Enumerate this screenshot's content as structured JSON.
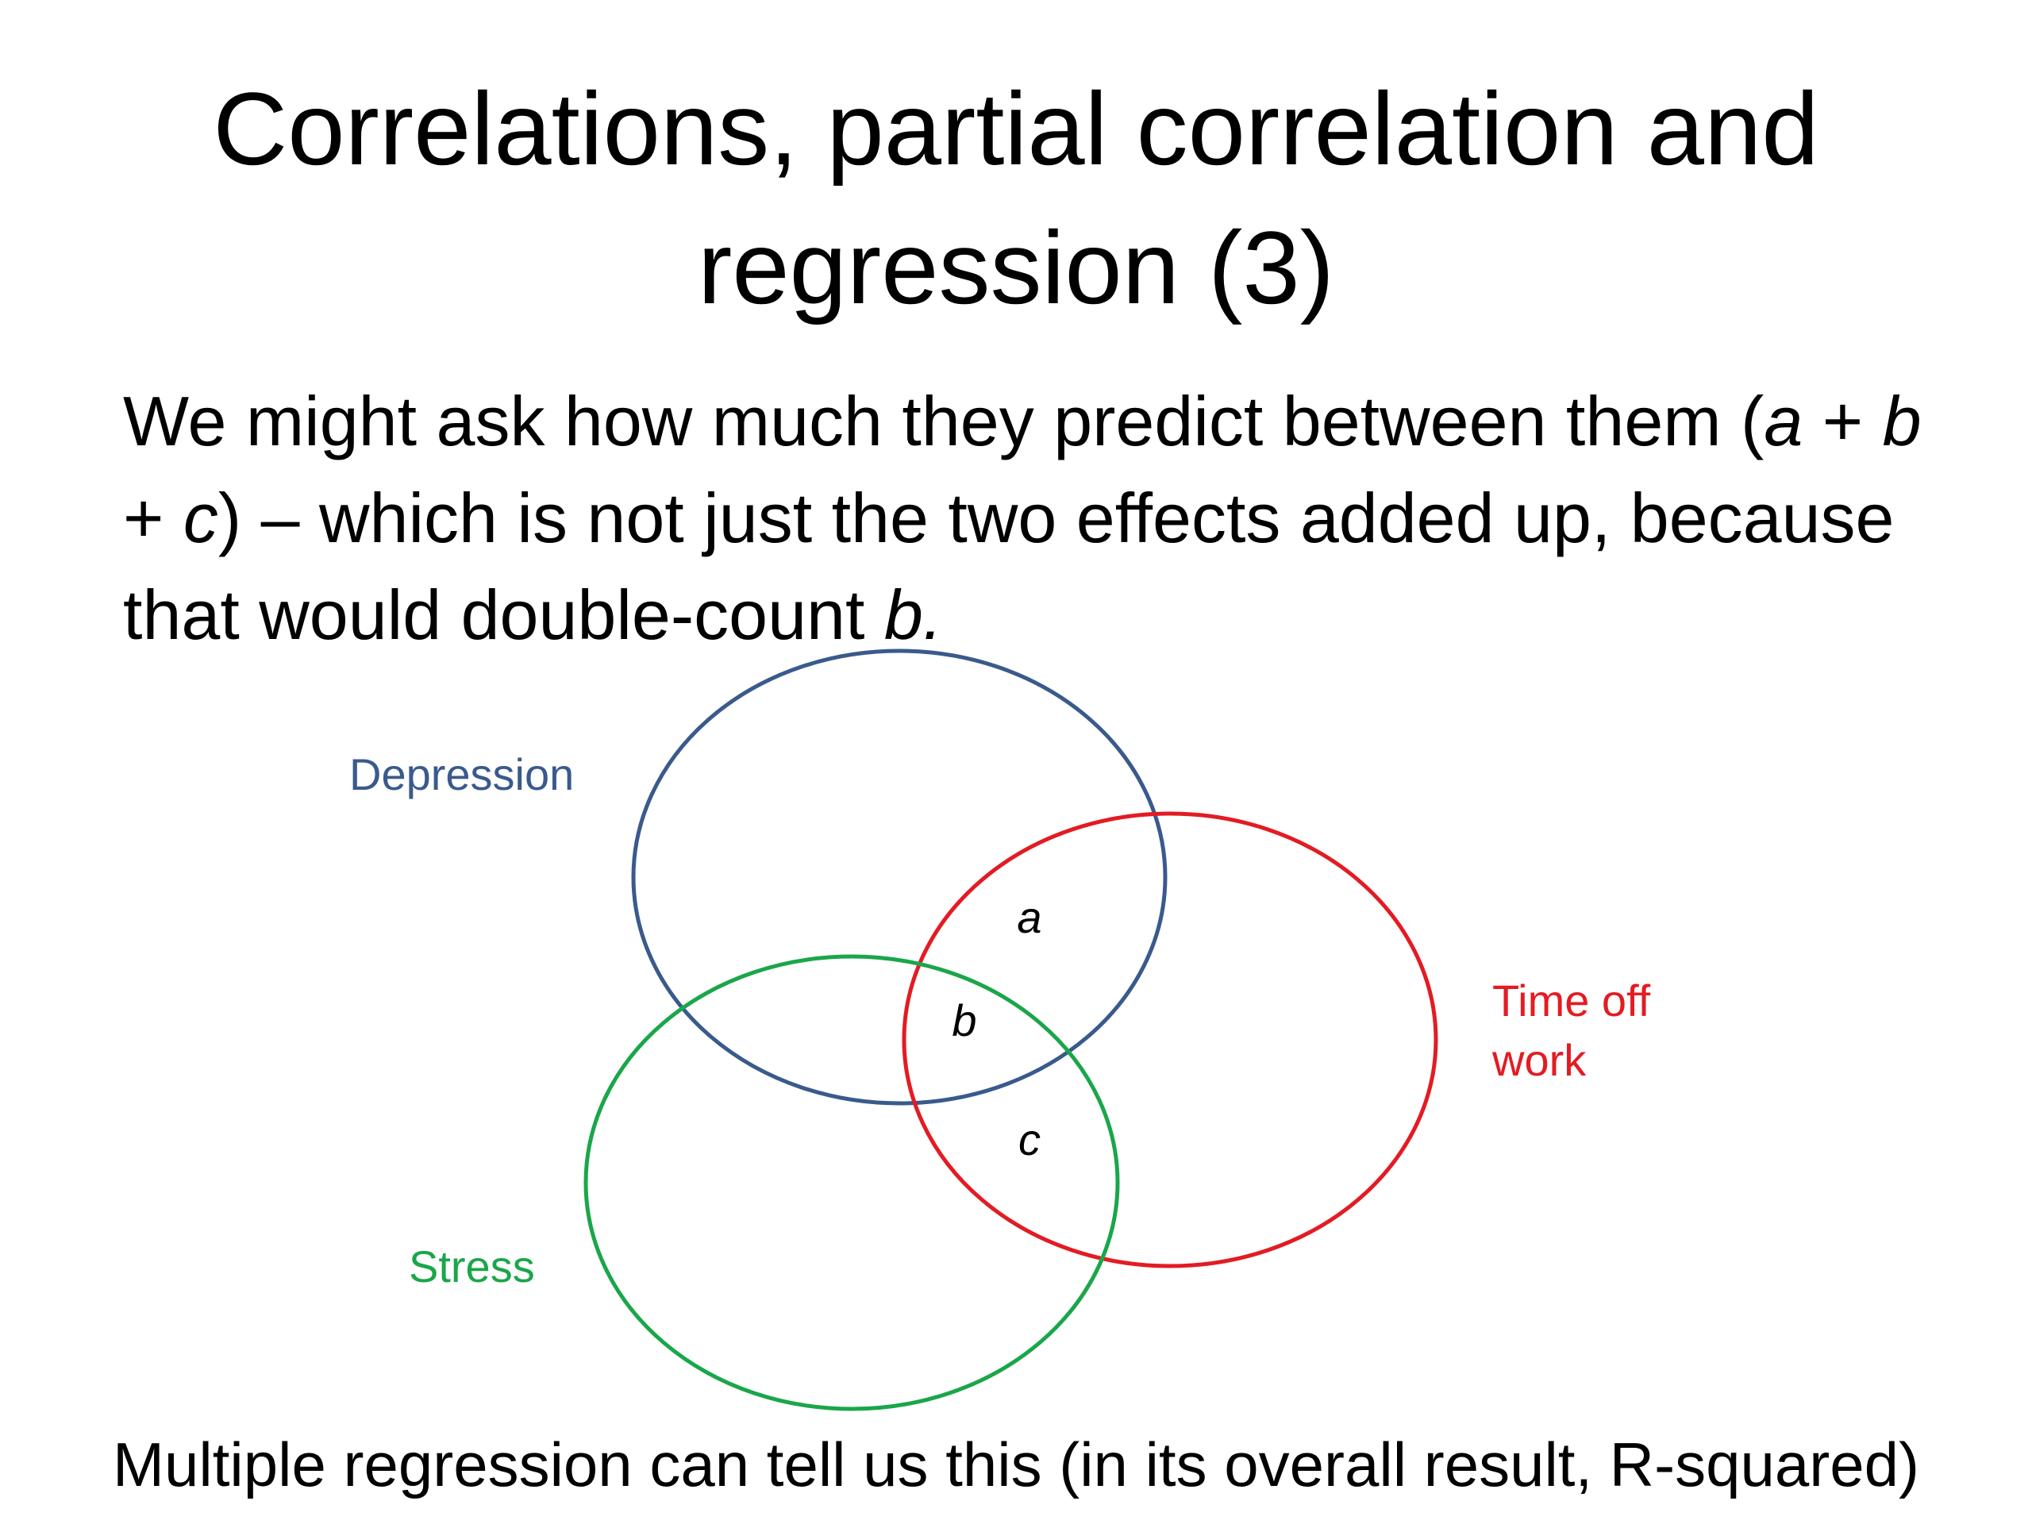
{
  "slide": {
    "title_line1": "Correlations, partial correlation and",
    "title_line2": "regression (3)",
    "body": {
      "p1": "We might ask how much they predict between them (",
      "a": "a",
      "p2": " + ",
      "b": "b",
      "p3": " + ",
      "c": "c",
      "p4": ") – which is not just the two effects added up, because that would double-count ",
      "b2": "b.",
      "p5": ""
    },
    "footer": "Multiple regression can tell us  this (in its overall result, R-squared)"
  },
  "diagram": {
    "sets": [
      {
        "name": "Depression",
        "color": "#3a5a8c"
      },
      {
        "name": "Time off work",
        "line1": "Time off",
        "line2": "work",
        "color": "#e31b23"
      },
      {
        "name": "Stress",
        "color": "#1aa64a"
      }
    ],
    "regions": {
      "a": "a",
      "b": "b",
      "c": "c"
    }
  }
}
